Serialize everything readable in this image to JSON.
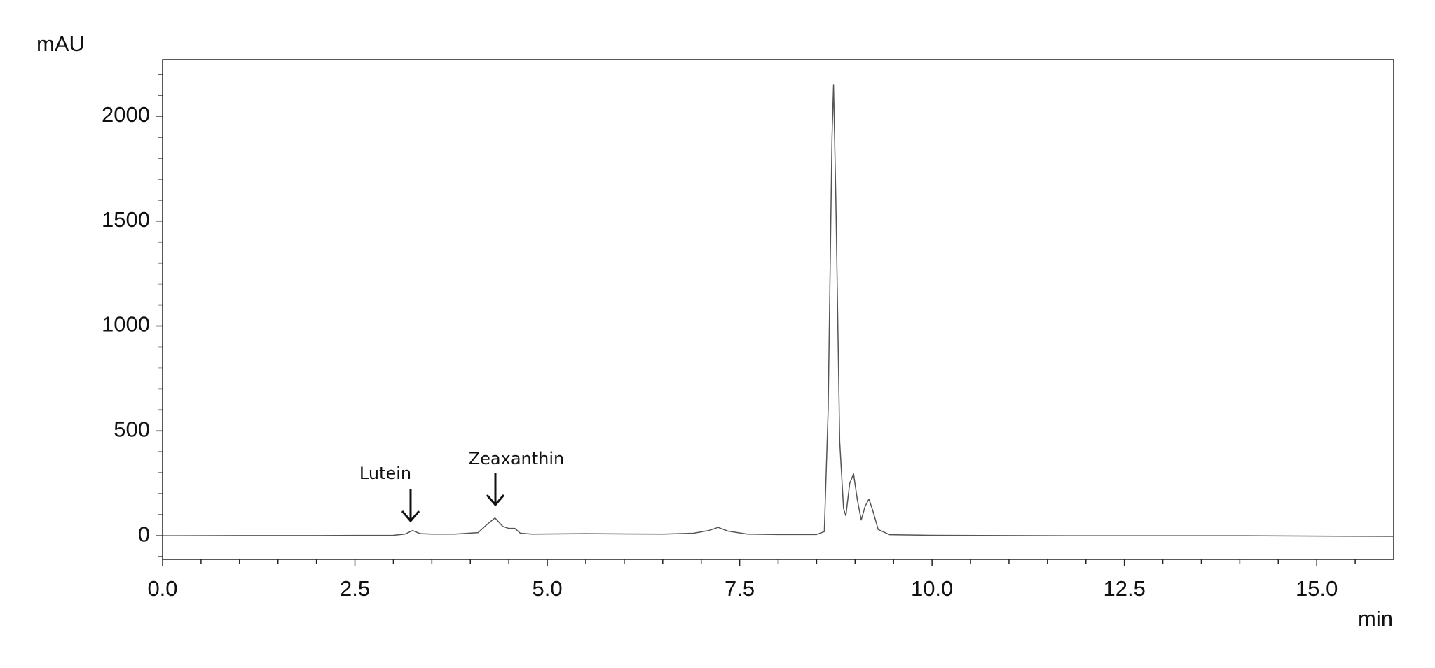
{
  "chart_data": {
    "type": "line",
    "y_label": "mAU",
    "x_label": "min",
    "annotations": [
      "Lutein",
      "Zeaxanthin"
    ],
    "x": [
      0,
      1,
      2,
      3,
      3.15,
      3.25,
      3.35,
      3.5,
      3.8,
      4.1,
      4.22,
      4.32,
      4.42,
      4.5,
      4.58,
      4.65,
      4.8,
      5.5,
      6.5,
      6.9,
      7.1,
      7.22,
      7.35,
      7.6,
      8.0,
      8.5,
      8.6,
      8.65,
      8.7,
      8.72,
      8.75,
      8.8,
      8.85,
      8.88,
      8.93,
      8.98,
      9.03,
      9.08,
      9.13,
      9.18,
      9.23,
      9.3,
      9.45,
      10,
      12,
      14,
      16
    ],
    "series": [
      {
        "color": "#555555",
        "values": [
          0,
          1,
          1,
          2,
          8,
          25,
          10,
          8,
          8,
          15,
          55,
          85,
          45,
          35,
          35,
          12,
          8,
          10,
          8,
          12,
          25,
          40,
          22,
          8,
          6,
          6,
          20,
          600,
          1900,
          2150,
          1600,
          450,
          130,
          95,
          250,
          295,
          170,
          75,
          140,
          175,
          120,
          30,
          5,
          2,
          0,
          0,
          -3
        ]
      }
    ],
    "xlim": [
      0,
      16
    ],
    "ylim": [
      -113,
      2270
    ],
    "xticks": [
      {
        "value": 0,
        "label": "0.0"
      },
      2.5,
      {
        "value": 5,
        "label": "5.0"
      },
      7.5,
      {
        "value": 10,
        "label": "10.0"
      },
      12.5,
      {
        "value": 15,
        "label": "15.0"
      }
    ],
    "xminorticks": [
      0.5,
      1,
      1.5,
      2,
      3,
      3.5,
      4,
      4.5,
      5.5,
      6,
      6.5,
      7,
      8,
      8.5,
      9,
      9.5,
      10.5,
      11,
      11.5,
      12,
      13,
      13.5,
      14,
      14.5,
      15.5
    ],
    "yticks": [
      0,
      500,
      1000,
      1500,
      2000
    ],
    "yminorticks": [
      -100,
      100,
      200,
      300,
      400,
      600,
      700,
      800,
      900,
      1100,
      1200,
      1300,
      1400,
      1600,
      1700,
      1800,
      1900,
      2100,
      2200
    ],
    "grid": false
  }
}
